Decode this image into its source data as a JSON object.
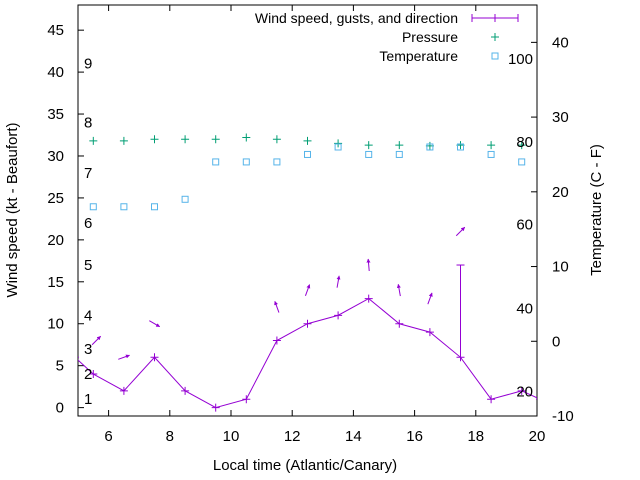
{
  "chart_data": {
    "type": "line",
    "title": "",
    "xlabel": "Local time (Atlantic/Canary)",
    "ylabel": "Wind speed (kt - Beaufort)",
    "y2label": "Temperature (C - F)",
    "xlim": [
      5,
      20
    ],
    "ylim": [
      -1,
      48
    ],
    "y2lim": [
      -10,
      45
    ],
    "x_ticks": [
      "6",
      "8",
      "10",
      "12",
      "14",
      "16",
      "18",
      "20"
    ],
    "y_ticks": [
      "0",
      "5",
      "10",
      "15",
      "20",
      "25",
      "30",
      "35",
      "40",
      "45"
    ],
    "y2_ticks": [
      "-10",
      "0",
      "10",
      "20",
      "30",
      "40"
    ],
    "beaufort_labels": [
      {
        "label": "1",
        "kt": 1
      },
      {
        "label": "2",
        "kt": 4
      },
      {
        "label": "3",
        "kt": 7
      },
      {
        "label": "4",
        "kt": 11
      },
      {
        "label": "5",
        "kt": 17
      },
      {
        "label": "6",
        "kt": 22
      },
      {
        "label": "7",
        "kt": 28
      },
      {
        "label": "8",
        "kt": 34
      },
      {
        "label": "9",
        "kt": 41
      }
    ],
    "fahrenheit_labels": [
      {
        "label": "20",
        "c": -6.7
      },
      {
        "label": "40",
        "c": 4.4
      },
      {
        "label": "60",
        "c": 15.6
      },
      {
        "label": "80",
        "c": 26.7
      },
      {
        "label": "100",
        "c": 37.8
      }
    ],
    "legend": [
      {
        "name": "Wind speed, gusts, and direction",
        "marker": "plus-line",
        "color": "#9400d3"
      },
      {
        "name": "Pressure",
        "marker": "plus",
        "color": "#009e73"
      },
      {
        "name": "Temperature",
        "marker": "square",
        "color": "#56b4e9"
      }
    ],
    "wind": {
      "x": [
        4.9,
        5.5,
        6.5,
        7.5,
        8.5,
        9.5,
        10.5,
        11.5,
        12.5,
        13.5,
        14.5,
        15.5,
        16.5,
        17.5,
        18.5,
        19.5,
        20.1
      ],
      "y": [
        6,
        4,
        2,
        6,
        2,
        0,
        1,
        8,
        10,
        11,
        13,
        10,
        9,
        6,
        1,
        2,
        1
      ],
      "gust": [
        {
          "x": 17.5,
          "y": 17
        }
      ],
      "direction_deg": [
        {
          "x": 5.6,
          "y": 8,
          "deg": 225
        },
        {
          "x": 6.5,
          "y": 6,
          "deg": 250
        },
        {
          "x": 7.5,
          "y": 10,
          "deg": 300
        },
        {
          "x": 11.5,
          "y": 12,
          "deg": 160
        },
        {
          "x": 12.5,
          "y": 14,
          "deg": 200
        },
        {
          "x": 13.5,
          "y": 15,
          "deg": 190
        },
        {
          "x": 14.5,
          "y": 17,
          "deg": 175
        },
        {
          "x": 15.5,
          "y": 14,
          "deg": 170
        },
        {
          "x": 16.5,
          "y": 13,
          "deg": 200
        },
        {
          "x": 17.5,
          "y": 21,
          "deg": 225
        }
      ]
    },
    "pressure": {
      "x": [
        5.5,
        6.5,
        7.5,
        8.5,
        9.5,
        10.5,
        11.5,
        12.5,
        13.5,
        14.5,
        15.5,
        16.5,
        17.5,
        18.5,
        19.5
      ],
      "y": [
        31.8,
        31.8,
        32,
        32,
        32,
        32.2,
        32,
        31.8,
        31.5,
        31.3,
        31.3,
        31.2,
        31.3,
        31.3,
        31.3
      ]
    },
    "temperature": {
      "x": [
        5.5,
        6.5,
        7.5,
        8.5,
        9.5,
        10.5,
        11.5,
        12.5,
        13.5,
        14.5,
        15.5,
        16.5,
        17.5,
        18.5,
        19.5
      ],
      "celsius": [
        18,
        18,
        18,
        19,
        24,
        24,
        24,
        25,
        26,
        25,
        25,
        26,
        26,
        25,
        24
      ]
    }
  }
}
